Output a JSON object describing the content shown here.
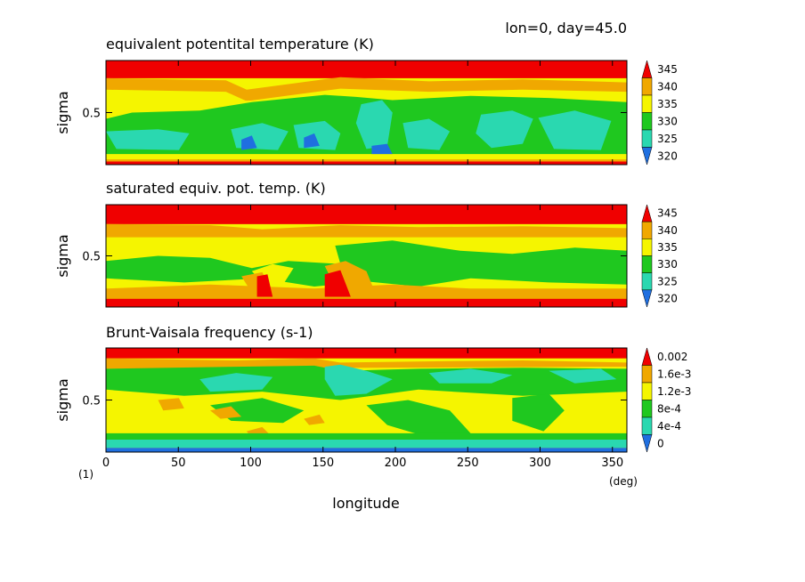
{
  "header": {
    "text": "lon=0, day=45.0"
  },
  "figure_number": "(1)",
  "colors": {
    "c320": "#1f6fe0",
    "c325": "#2ad8b0",
    "c330": "#1fc81f",
    "c335": "#f5f500",
    "c340": "#f0a800",
    "c345": "#f00000"
  },
  "chart_data": [
    {
      "type": "heatmap",
      "title": "equivalent potentital temperature (K)",
      "xlabel": "longitude",
      "xunit": "(deg)",
      "ylabel": "sigma",
      "xlim": [
        0,
        360
      ],
      "ylim": [
        0,
        1
      ],
      "x_ticks": [
        "0",
        "50",
        "100",
        "150",
        "200",
        "250",
        "300",
        "350"
      ],
      "y_ticks": [
        "0.5"
      ],
      "levels": [
        "320",
        "325",
        "330",
        "335",
        "340",
        "345"
      ],
      "level_colors": [
        "#1f6fe0",
        "#2ad8b0",
        "#1fc81f",
        "#f5f500",
        "#f0a800",
        "#f00000"
      ]
    },
    {
      "type": "heatmap",
      "title": "saturated equiv. pot. temp. (K)",
      "xlabel": "longitude",
      "xunit": "(deg)",
      "ylabel": "sigma",
      "xlim": [
        0,
        360
      ],
      "ylim": [
        0,
        1
      ],
      "x_ticks": [
        "0",
        "50",
        "100",
        "150",
        "200",
        "250",
        "300",
        "350"
      ],
      "y_ticks": [
        "0.5"
      ],
      "levels": [
        "320",
        "325",
        "330",
        "335",
        "340",
        "345"
      ],
      "level_colors": [
        "#1f6fe0",
        "#2ad8b0",
        "#1fc81f",
        "#f5f500",
        "#f0a800",
        "#f00000"
      ]
    },
    {
      "type": "heatmap",
      "title": "Brunt-Vaisala frequency (s-1)",
      "xlabel": "longitude",
      "xunit": "(deg)",
      "ylabel": "sigma",
      "xlim": [
        0,
        360
      ],
      "ylim": [
        0,
        1
      ],
      "x_ticks": [
        "0",
        "50",
        "100",
        "150",
        "200",
        "250",
        "300",
        "350"
      ],
      "y_ticks": [
        "0.5"
      ],
      "levels": [
        "0",
        "4e-4",
        "8e-4",
        "1.2e-3",
        "1.6e-3",
        "0.002"
      ],
      "level_colors": [
        "#1f6fe0",
        "#2ad8b0",
        "#1fc81f",
        "#f5f500",
        "#f0a800",
        "#f00000"
      ]
    }
  ]
}
